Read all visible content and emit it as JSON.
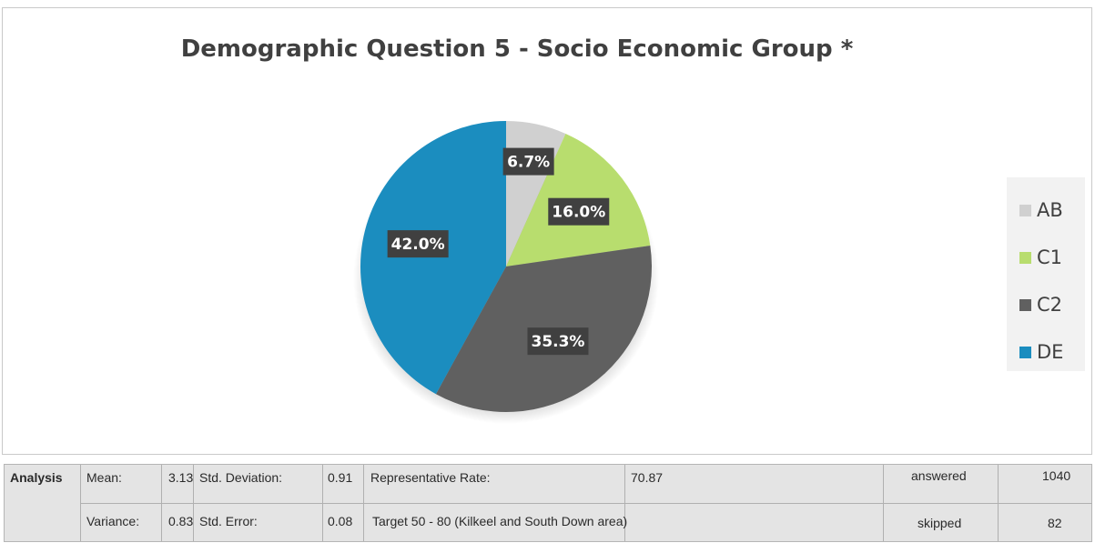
{
  "chart_data": {
    "type": "pie",
    "title": "Demographic Question 5 - Socio Economic Group *",
    "categories": [
      "AB",
      "C1",
      "C2",
      "DE"
    ],
    "values": [
      6.7,
      16.0,
      35.3,
      42.0
    ],
    "labels": [
      "6.7%",
      "16.0%",
      "35.3%",
      "42.0%"
    ],
    "colors": [
      "#d0d0d0",
      "#b8dd6e",
      "#606060",
      "#1b8dbf"
    ],
    "legend_position": "right"
  },
  "analysis": {
    "label": "Analysis",
    "mean_label": "Mean:",
    "mean_value": "3.13",
    "std_dev_label": "Std. Deviation:",
    "std_dev_value": "0.91",
    "rep_rate_label": "Representative Rate:",
    "rep_rate_value": "70.87",
    "variance_label": "Variance:",
    "variance_value": "0.83",
    "std_err_label": "Std. Error:",
    "std_err_value": "0.08",
    "target_text": "Target 50 - 80 (Kilkeel and South Down area)",
    "answered_label": "answered",
    "answered_value": "1040",
    "skipped_label": "skipped",
    "skipped_value": "82"
  }
}
